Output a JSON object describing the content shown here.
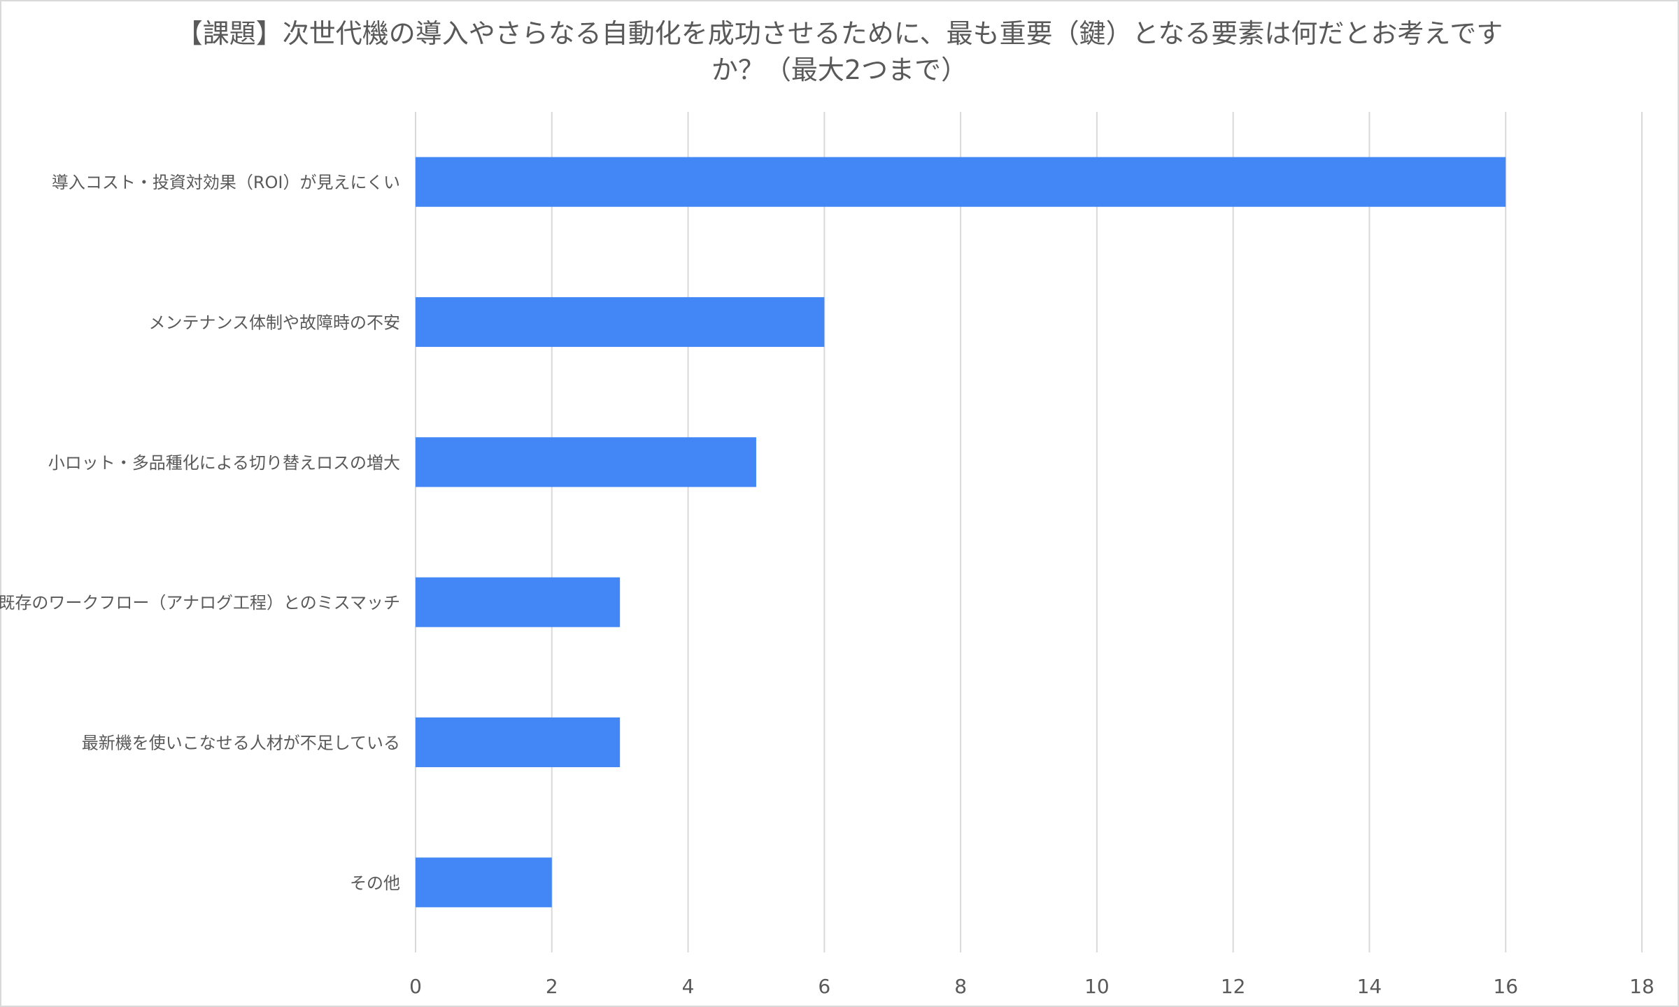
{
  "chart_data": {
    "type": "bar",
    "orientation": "horizontal",
    "title_lines": [
      "【課題】次世代機の導入やさらなる自動化を成功させるために、最も重要（鍵）となる要素は何だとお考えです",
      "か？（最大2つまで）"
    ],
    "categories": [
      "導入コスト・投資対効果（ROI）が見えにくい",
      "メンテナンス体制や故障時の不安",
      "小ロット・多品種化による切り替えロスの増大",
      "既存のワークフロー（アナログ工程）とのミスマッチ",
      "最新機を使いこなせる人材が不足している",
      "その他"
    ],
    "values": [
      16,
      6,
      5,
      3,
      3,
      2
    ],
    "xlim": [
      0,
      18
    ],
    "xticks": [
      "0",
      "2",
      "4",
      "6",
      "8",
      "10",
      "12",
      "14",
      "16",
      "18"
    ],
    "grid": "vertical",
    "legend": "none",
    "colors": {
      "bar": "#4287F5",
      "grid": "#d9d9d9",
      "text": "#595959"
    }
  }
}
